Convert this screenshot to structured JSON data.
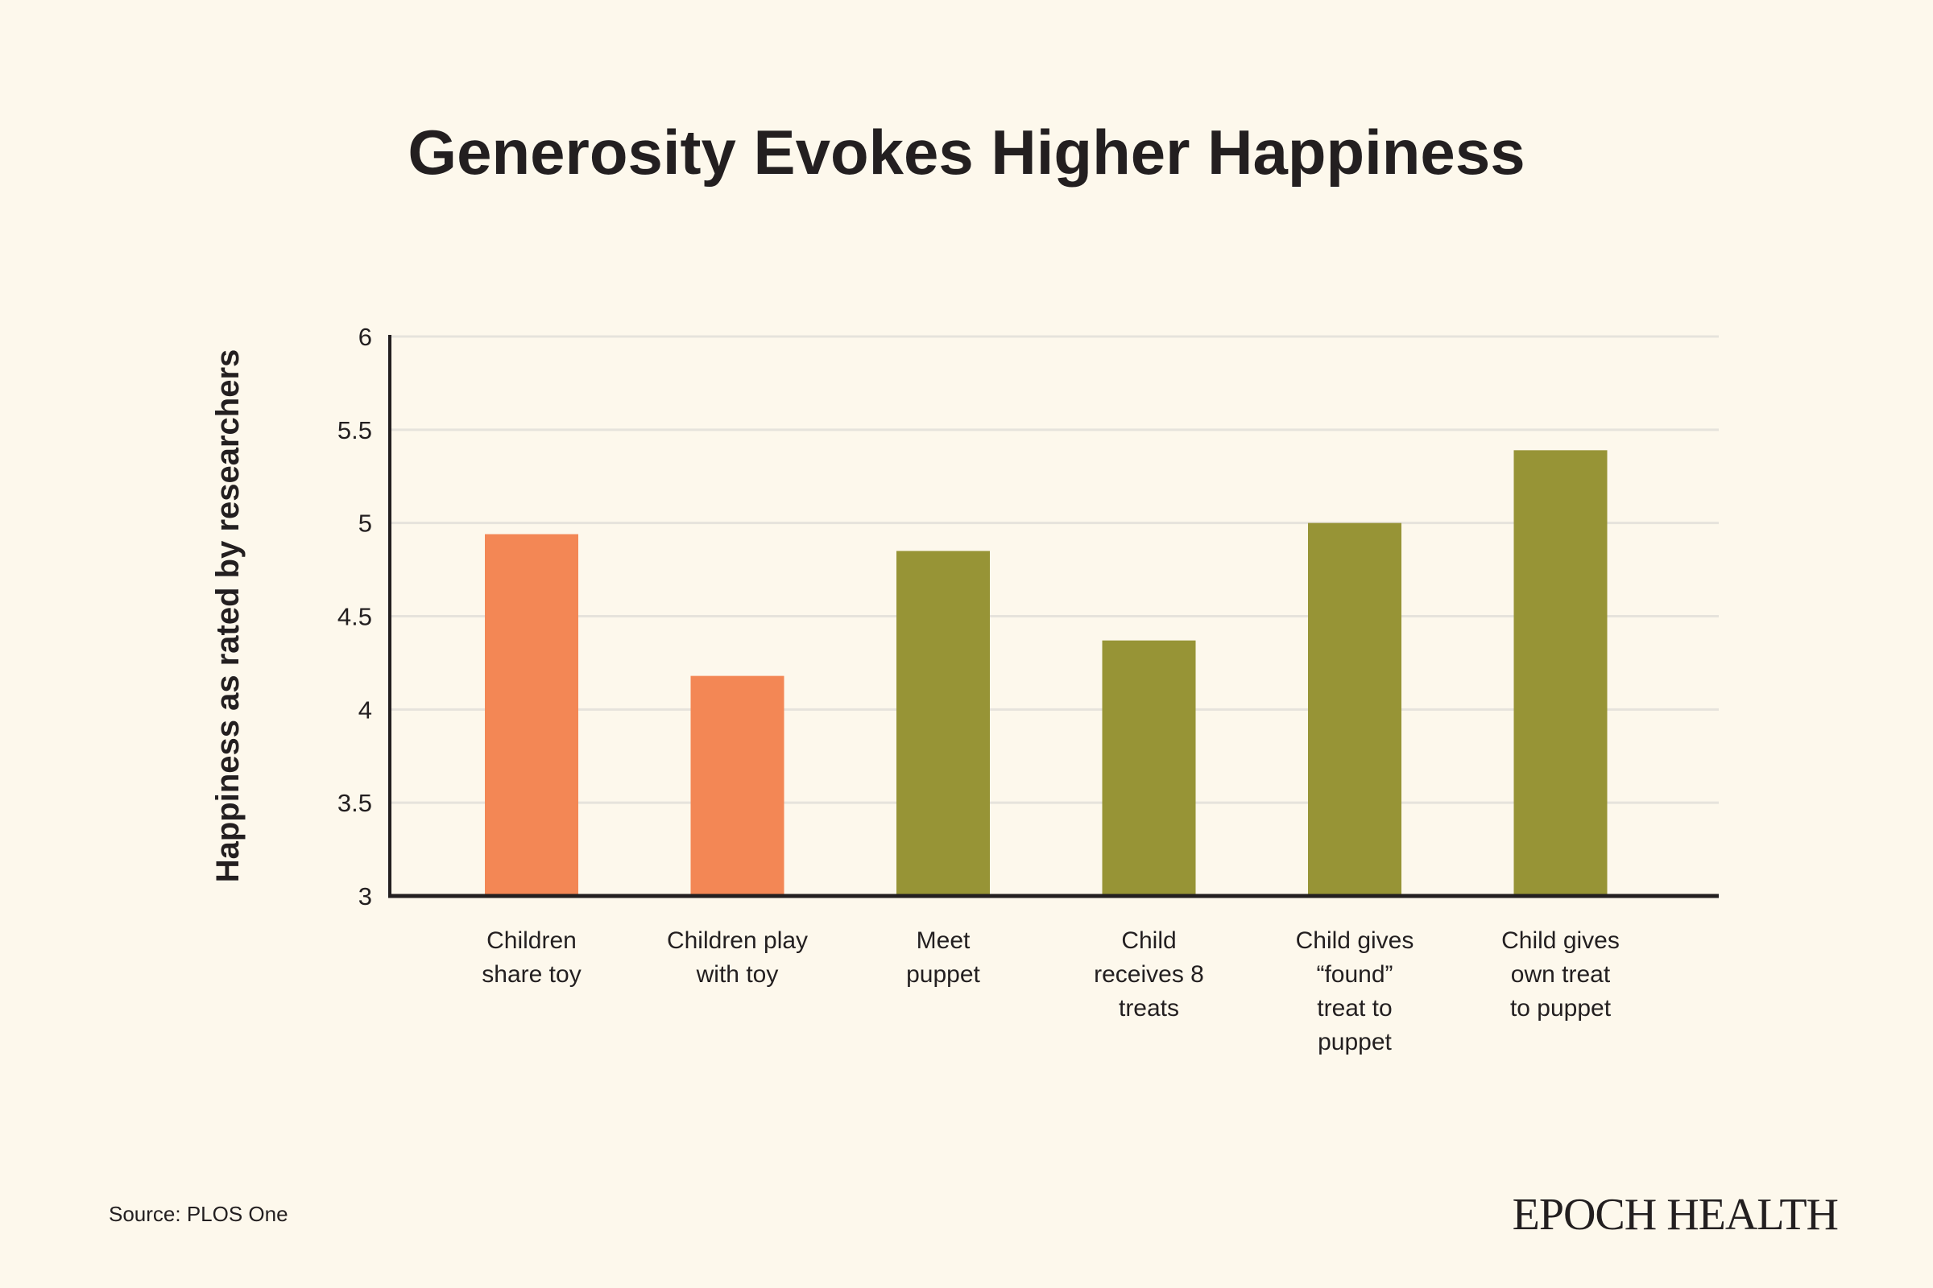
{
  "chart_data": {
    "type": "bar",
    "title": "Generosity Evokes Higher Happiness",
    "xlabel": "",
    "ylabel": "Happiness as rated by researchers",
    "ylim": [
      3,
      6
    ],
    "yticks": [
      "3",
      "3.5",
      "4",
      "4.5",
      "5",
      "5.5",
      "6"
    ],
    "grid": true,
    "categories": [
      [
        "Children",
        "share toy"
      ],
      [
        "Children play",
        "with toy"
      ],
      [
        "Meet",
        "puppet"
      ],
      [
        "Child",
        "receives 8",
        "treats"
      ],
      [
        "Child gives",
        "“found”",
        "treat to",
        "puppet"
      ],
      [
        "Child gives",
        "own treat",
        "to puppet"
      ]
    ],
    "values": [
      4.94,
      4.18,
      4.85,
      4.37,
      5.0,
      5.39
    ],
    "bar_colors": [
      "#f38755",
      "#f38755",
      "#979436",
      "#979436",
      "#979436",
      "#979436"
    ]
  },
  "footer": {
    "source": "Source: PLOS One",
    "logo": "EPOCH HEALTH"
  }
}
